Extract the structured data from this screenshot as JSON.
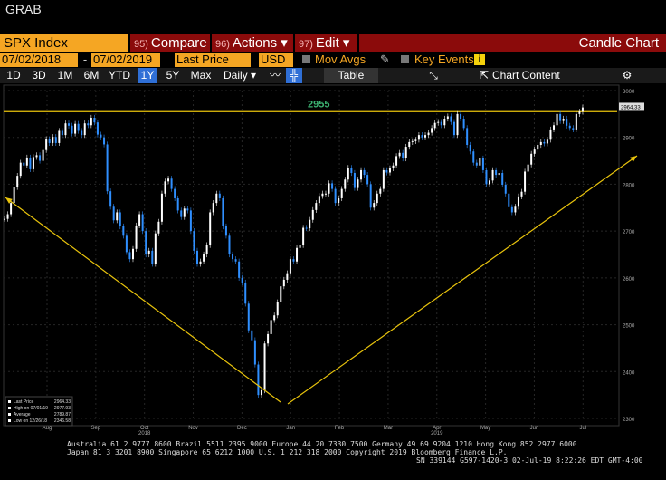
{
  "window": {
    "title": "GRAB"
  },
  "toolbar": {
    "ticker": "SPX Index",
    "compare": {
      "num": "95)",
      "label": "Compare"
    },
    "actions": {
      "num": "96)",
      "label": "Actions ▾"
    },
    "edit": {
      "num": "97)",
      "label": "Edit ▾"
    },
    "chart_type": "Candle Chart"
  },
  "params": {
    "start_date": "07/02/2018",
    "end_date": "07/02/2019",
    "field": "Last Price",
    "currency": "USD",
    "mov_avgs": "Mov Avgs",
    "key_events": "Key Events"
  },
  "range_tabs": [
    "1D",
    "3D",
    "1M",
    "6M",
    "YTD",
    "1Y",
    "5Y",
    "Max"
  ],
  "active_tab": "1Y",
  "period": "Daily",
  "table_label": "Table",
  "chart_content_label": "Chart Content",
  "colors": {
    "accent": "#f5a623",
    "red": "#8b0b0b",
    "up": "#ffffff",
    "down": "#2f8fff",
    "trend": "#e8c30c",
    "level": "#3cb371"
  },
  "chart_data": {
    "type": "candlestick",
    "y_ticks": [
      2300,
      2400,
      2500,
      2600,
      2700,
      2800,
      2900,
      3000
    ],
    "ylim": [
      2300,
      3000
    ],
    "x_ticks": [
      "Aug",
      "Sep",
      "Oct",
      "Nov",
      "Dec",
      "Jan",
      "Feb",
      "Mar",
      "Apr",
      "May",
      "Jun",
      "Jul"
    ],
    "year_labels": [
      {
        "label": "2018",
        "at": "Oct"
      },
      {
        "label": "2019",
        "at": "Apr"
      }
    ],
    "annotation": {
      "label": "2955",
      "value": 2955
    },
    "closes": [
      2726,
      2736,
      2760,
      2794,
      2818,
      2846,
      2840,
      2857,
      2832,
      2858,
      2862,
      2850,
      2873,
      2896,
      2888,
      2901,
      2888,
      2914,
      2905,
      2930,
      2925,
      2908,
      2929,
      2914,
      2905,
      2930,
      2926,
      2942,
      2932,
      2906,
      2900,
      2885,
      2785,
      2752,
      2723,
      2740,
      2710,
      2690,
      2655,
      2640,
      2662,
      2712,
      2736,
      2700,
      2650,
      2658,
      2630,
      2695,
      2720,
      2780,
      2806,
      2812,
      2790,
      2770,
      2744,
      2730,
      2748,
      2744,
      2700,
      2658,
      2630,
      2635,
      2650,
      2670,
      2740,
      2760,
      2780,
      2770,
      2710,
      2690,
      2650,
      2640,
      2635,
      2600,
      2590,
      2545,
      2488,
      2467,
      2415,
      2350,
      2360,
      2460,
      2480,
      2510,
      2520,
      2548,
      2582,
      2596,
      2610,
      2640,
      2635,
      2664,
      2670,
      2707,
      2706,
      2724,
      2745,
      2760,
      2775,
      2780,
      2780,
      2802,
      2790,
      2760,
      2770,
      2790,
      2810,
      2835,
      2824,
      2792,
      2810,
      2830,
      2820,
      2800,
      2750,
      2760,
      2780,
      2790,
      2830,
      2825,
      2834,
      2840,
      2860,
      2867,
      2855,
      2880,
      2890,
      2892,
      2895,
      2905,
      2900,
      2905,
      2910,
      2920,
      2931,
      2933,
      2926,
      2940,
      2945,
      2933,
      2905,
      2950,
      2940,
      2920,
      2884,
      2870,
      2846,
      2840,
      2855,
      2830,
      2800,
      2808,
      2830,
      2820,
      2824,
      2799,
      2780,
      2751,
      2740,
      2752,
      2774,
      2784,
      2827,
      2842,
      2865,
      2874,
      2884,
      2890,
      2887,
      2895,
      2917,
      2926,
      2950,
      2935,
      2940,
      2925,
      2920,
      2917,
      2950,
      2955,
      2964
    ],
    "series": [
      {
        "name": "Last Price",
        "value": "2964.33"
      },
      {
        "name": "High on 07/01/19",
        "value": "2977.93"
      },
      {
        "name": "Average",
        "value": "2789.87"
      },
      {
        "name": "Low on 12/26/18",
        "value": "2346.58"
      }
    ]
  },
  "footer": {
    "line1": "Australia 61 2 9777 8600 Brazil 5511 2395 9000 Europe 44 20 7330 7500 Germany 49 69 9204 1210 Hong Kong 852 2977 6000",
    "line2": "Japan 81 3 3201 8900        Singapore 65 6212 1000        U.S. 1 212 318 2000        Copyright 2019 Bloomberg Finance L.P.",
    "line3": "SN 339144 G597-1420-3 02-Jul-19  8:22:26 EDT  GMT-4:00"
  }
}
